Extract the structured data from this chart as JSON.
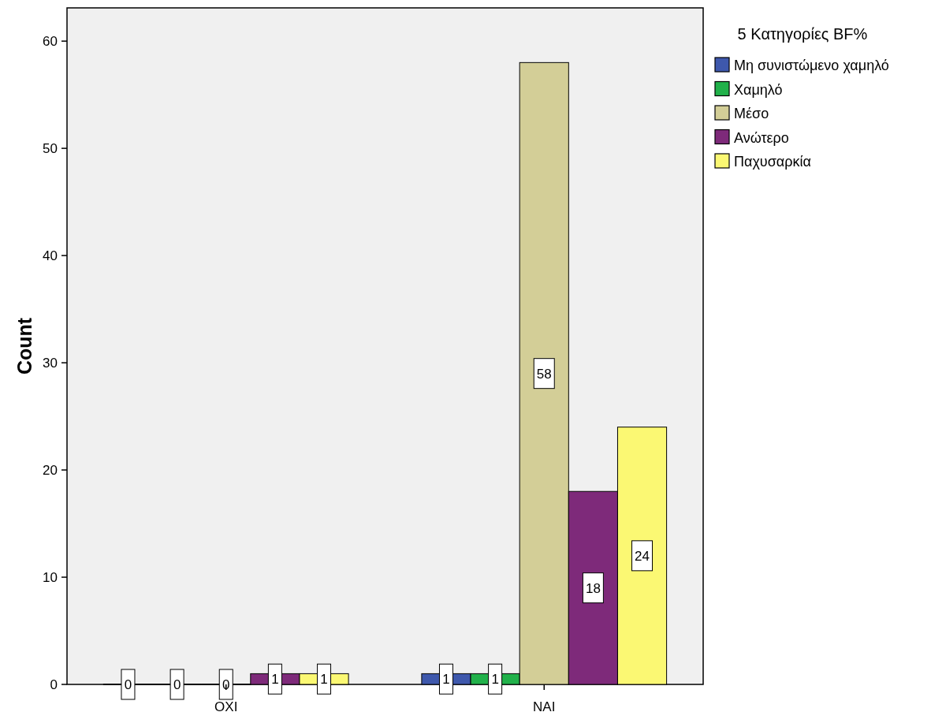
{
  "chart_data": {
    "type": "bar",
    "categories": [
      "ΟΧΙ",
      "ΝΑΙ"
    ],
    "series": [
      {
        "name": "Μη συνιστώμενο χαμηλό",
        "color": "#3e58ac",
        "values": [
          0,
          1
        ]
      },
      {
        "name": "Χαμηλό",
        "color": "#21b14a",
        "values": [
          0,
          1
        ]
      },
      {
        "name": "Μέσο",
        "color": "#d3ce97",
        "values": [
          0,
          58
        ]
      },
      {
        "name": "Ανώτερο",
        "color": "#7e2a7a",
        "values": [
          1,
          18
        ]
      },
      {
        "name": "Παχυσαρκία",
        "color": "#fbf873",
        "values": [
          1,
          24
        ]
      }
    ],
    "ylabel": "Count",
    "legend_title": "5 Κατηγορίες BF%",
    "legend": "right",
    "ylim": [
      0,
      63.1
    ],
    "yticks": [
      0,
      10,
      20,
      30,
      40,
      50,
      60
    ],
    "data_labels": true,
    "grid": false
  }
}
